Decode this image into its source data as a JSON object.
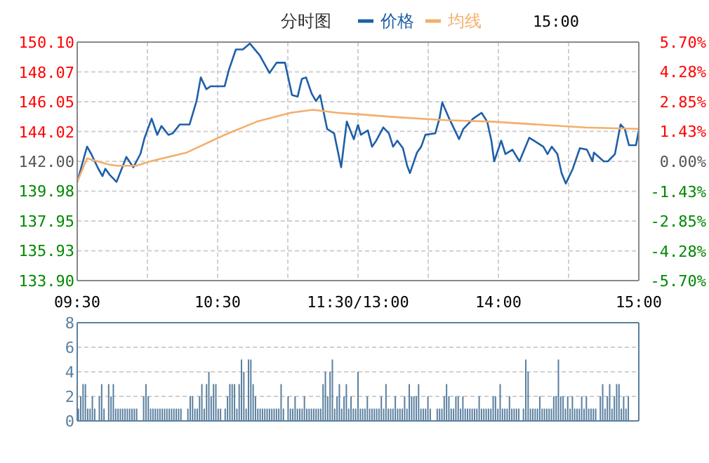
{
  "chart_data": [
    {
      "type": "line",
      "title": "分时图",
      "annotations": [
        "15:00"
      ],
      "legend": "top",
      "grid": true,
      "xlim": [
        9.5,
        11.5
      ],
      "xticks": [
        {
          "value": 9.5,
          "label": "09:30"
        },
        {
          "value": 10,
          "label": null
        },
        {
          "value": 10.5,
          "label": "10:30"
        },
        {
          "value": 11,
          "label": null
        },
        {
          "value": 11.5,
          "label": "11:30/13:00"
        }
      ],
      "ylim": [
        133.9,
        150.1
      ],
      "yticks": [
        {
          "value": 133.9,
          "label": "133.90"
        },
        {
          "value": 135.93,
          "label": "135.93"
        },
        {
          "value": 137.95,
          "label": "137.95"
        },
        {
          "value": 139.98,
          "label": "139.98"
        },
        {
          "value": 142,
          "label": "142.00"
        },
        {
          "value": 144.02,
          "label": "144.02"
        },
        {
          "value": 146.05,
          "label": "146.05"
        },
        {
          "value": 148.07,
          "label": "148.07"
        },
        {
          "value": 150.1,
          "label": "150.10"
        }
      ],
      "series": [
        {
          "name": "价格",
          "color": "#1f5fa8",
          "x": [
            9.5,
            9.57,
            9.6,
            9.65,
            9.68,
            9.7,
            9.73,
            9.78,
            9.85,
            9.9,
            9.95,
            9.98,
            10.03,
            10.07,
            10.1,
            10.15,
            10.18,
            10.23,
            10.3,
            10.35,
            10.38,
            10.42,
            10.45,
            10.55,
            10.58,
            10.63,
            10.68,
            10.73,
            10.8,
            10.87,
            10.92,
            10.98,
            11.03,
            11.07,
            11.1,
            11.13,
            11.17,
            11.2,
            11.23,
            11.28,
            11.33,
            11.38,
            11.42,
            11.47,
            11.5
          ],
          "values": [
            140.6,
            143.0,
            142.5,
            141.5,
            141.0,
            141.5,
            141.1,
            140.6,
            142.3,
            141.6,
            142.5,
            143.6,
            144.9,
            143.8,
            144.4,
            143.8,
            143.9,
            144.5,
            144.5,
            146.1,
            147.7,
            146.9,
            147.1,
            147.1,
            148.2,
            149.6,
            149.6,
            150.0,
            149.2,
            148.0,
            148.7,
            148.7,
            146.5,
            146.4,
            147.6,
            147.7,
            146.6,
            146.1,
            146.5,
            144.2,
            143.9,
            141.6,
            144.7,
            143.5,
            144.5
          ]
        },
        {
          "name": "均线",
          "color": "#f5ae6b",
          "x": [
            9.5,
            9.57,
            9.72,
            9.78,
            9.92,
            10.02,
            10.28,
            10.55,
            10.78,
            11.02,
            11.18,
            11.35,
            11.5
          ],
          "values": [
            140.6,
            142.2,
            141.8,
            141.7,
            141.7,
            142.0,
            142.6,
            143.8,
            144.7,
            145.3,
            145.5,
            145.3,
            145.2
          ]
        }
      ]
    },
    {
      "type": "line",
      "grid": true,
      "xlim": [
        13,
        15
      ],
      "xticks": [
        {
          "value": 13.5,
          "label": null
        },
        {
          "value": 14,
          "label": "14:00"
        },
        {
          "value": 14.5,
          "label": null
        },
        {
          "value": 15,
          "label": "15:00"
        }
      ],
      "ylim": [
        -5.7,
        5.7
      ],
      "yticks": [
        {
          "value": -5.7,
          "label": "-5.70%"
        },
        {
          "value": -4.28,
          "label": "-4.28%"
        },
        {
          "value": -2.85,
          "label": "-2.85%"
        },
        {
          "value": -1.43,
          "label": "-1.43%"
        },
        {
          "value": 0,
          "label": "0.00%"
        },
        {
          "value": 1.43,
          "label": "1.43%"
        },
        {
          "value": 2.85,
          "label": "2.85%"
        },
        {
          "value": 4.28,
          "label": "4.28%"
        },
        {
          "value": 5.7,
          "label": "5.70%"
        }
      ],
      "series": [
        {
          "color": "#1f5fa8",
          "x": [
            13.0,
            13.02,
            13.07,
            13.1,
            13.13,
            13.18,
            13.22,
            13.25,
            13.28,
            13.32,
            13.35,
            13.37,
            13.42,
            13.45,
            13.48,
            13.55,
            13.58,
            13.6,
            13.65,
            13.72,
            13.75,
            13.82,
            13.88,
            13.92,
            13.95,
            13.97,
            14.02,
            14.05,
            14.1,
            14.15,
            14.22,
            14.27,
            14.32,
            14.35,
            14.38,
            14.42,
            14.45,
            14.48,
            14.53,
            14.58,
            14.63,
            14.67,
            14.68,
            14.75,
            14.78,
            14.83,
            14.87,
            14.9,
            14.93,
            14.98,
            15.0
          ],
          "values": [
            1.76,
            1.27,
            1.48,
            0.7,
            0.99,
            1.62,
            1.34,
            0.7,
            0.99,
            0.63,
            -0.21,
            -0.56,
            0.42,
            0.7,
            1.27,
            1.34,
            2.04,
            2.82,
            2.04,
            1.06,
            1.55,
            2.04,
            2.32,
            1.9,
            0.99,
            0,
            0.99,
            0.35,
            0.56,
            0,
            1.13,
            0.92,
            0.7,
            0.35,
            0.7,
            0.35,
            -0.56,
            -1.06,
            -0.35,
            0.63,
            0.56,
            0,
            0.42,
            0,
            0,
            0.35,
            1.76,
            1.55,
            0.77,
            0.77,
            1.48
          ]
        },
        {
          "color": "#f5ae6b",
          "x": [
            13.0,
            13.28,
            13.62,
            13.95,
            14.28,
            14.62,
            15.0
          ],
          "values": [
            2.25,
            2.11,
            1.97,
            1.9,
            1.76,
            1.62,
            1.55
          ]
        }
      ]
    },
    {
      "type": "bar",
      "grid": "y",
      "tick_labels": "y",
      "color": "#5b80a0",
      "categories": [
        null,
        null,
        null,
        null,
        null,
        null,
        null,
        null,
        null,
        null,
        null,
        null,
        null,
        null,
        null,
        null,
        null,
        null,
        null,
        null,
        null,
        null,
        null,
        null,
        null,
        null,
        null,
        null,
        null,
        null,
        null,
        null,
        null,
        null,
        null,
        null,
        null,
        null,
        null,
        null,
        null,
        null,
        null,
        null,
        null,
        null,
        null,
        null,
        null,
        null,
        null,
        null,
        null,
        null,
        null,
        null,
        null,
        null,
        null,
        null,
        null,
        null,
        null,
        null,
        null,
        null,
        null,
        null,
        null,
        null,
        null,
        null,
        null,
        null,
        null,
        null,
        null,
        null,
        null,
        null,
        null,
        null,
        null,
        null,
        null,
        null,
        null,
        null,
        null,
        null,
        null,
        null,
        null,
        null,
        null,
        null,
        null,
        null,
        null,
        null,
        null,
        null,
        null,
        null,
        null,
        null,
        null,
        null,
        null,
        null,
        null,
        null,
        null,
        null,
        null,
        null,
        null,
        null,
        null,
        null,
        null,
        null,
        null,
        null,
        null,
        null,
        null,
        null,
        null,
        null,
        null,
        null,
        null,
        null,
        null,
        null,
        null,
        null,
        null,
        null,
        null,
        null,
        null,
        null,
        null,
        null,
        null,
        null,
        null,
        null,
        null,
        null,
        null,
        null,
        null,
        null,
        null,
        null,
        null,
        null,
        null,
        null,
        null,
        null,
        null,
        null,
        null,
        null,
        null,
        null,
        null,
        null,
        null,
        null,
        null,
        null,
        null,
        null,
        null,
        null,
        null,
        null,
        null,
        null,
        null,
        null,
        null,
        null,
        null,
        null,
        null,
        null,
        null,
        null,
        null,
        null,
        null,
        null,
        null,
        null,
        null,
        null,
        null,
        null,
        null,
        null,
        null,
        null,
        null,
        null,
        null,
        null,
        null,
        null,
        null,
        null,
        null,
        null,
        null,
        null,
        null,
        null,
        null,
        null,
        null,
        null,
        null,
        null,
        null,
        null,
        null,
        null,
        null,
        null,
        null,
        null,
        null,
        null,
        null,
        null,
        null
      ],
      "ylim": [
        0,
        8
      ],
      "yticks": [
        0,
        2,
        4,
        6,
        8
      ],
      "values": [
        1,
        2,
        3,
        3,
        1,
        1,
        2,
        1,
        0,
        2,
        3,
        1,
        0,
        3,
        2,
        3,
        1,
        1,
        1,
        1,
        1,
        1,
        1,
        1,
        1,
        1,
        0,
        0,
        2,
        3,
        2,
        1,
        1,
        1,
        1,
        1,
        1,
        1,
        1,
        1,
        1,
        1,
        1,
        1,
        1,
        0,
        0,
        1,
        2,
        2,
        1,
        1,
        2,
        3,
        1,
        3,
        4,
        2,
        3,
        3,
        1,
        1,
        0,
        1,
        2,
        3,
        3,
        3,
        1,
        3,
        5,
        4,
        1,
        5,
        5,
        3,
        2,
        1,
        1,
        1,
        1,
        1,
        1,
        1,
        1,
        1,
        1,
        3,
        1,
        0,
        2,
        1,
        1,
        2,
        1,
        1,
        1,
        2,
        1,
        1,
        1,
        1,
        1,
        1,
        1,
        3,
        4,
        2,
        4,
        5,
        1,
        2,
        3,
        1,
        2,
        3,
        1,
        2,
        1,
        1,
        4,
        1,
        1,
        1,
        2,
        1,
        1,
        1,
        1,
        1,
        2,
        1,
        3,
        1,
        1,
        1,
        2,
        1,
        1,
        1,
        2,
        1,
        3,
        2,
        2,
        2,
        3,
        1,
        1,
        1,
        2,
        1,
        0,
        0,
        1,
        1,
        1,
        2,
        3,
        2,
        1,
        1,
        2,
        2,
        1,
        2,
        1,
        1,
        1,
        1,
        1,
        1,
        2,
        1,
        1,
        1,
        1,
        1,
        2,
        2,
        1,
        3,
        1,
        1,
        1,
        2,
        1,
        1,
        1,
        1,
        0,
        1,
        5,
        4,
        1,
        1,
        1,
        1,
        2,
        1,
        1,
        1,
        1,
        1,
        2,
        2,
        5,
        2,
        2,
        1,
        2,
        1,
        2,
        1,
        1,
        1,
        2,
        1,
        2,
        1,
        1,
        1,
        1,
        0,
        2,
        3,
        1,
        2,
        3,
        1,
        2,
        3,
        3,
        1,
        2,
        1,
        2,
        0,
        0,
        0,
        0
      ]
    }
  ]
}
